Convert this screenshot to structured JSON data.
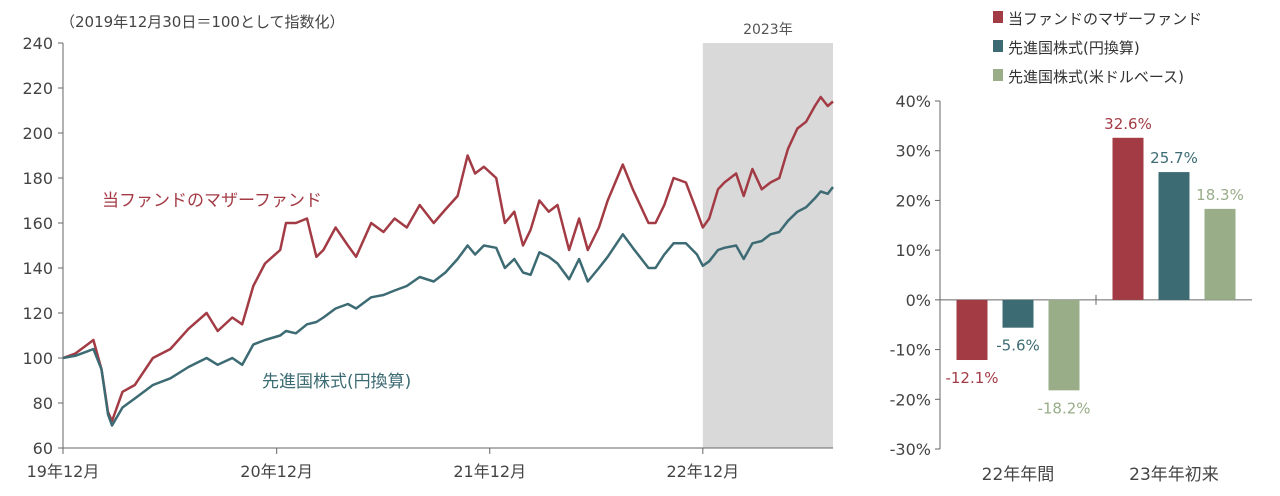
{
  "chart_data": [
    {
      "type": "line",
      "note": "（2019年12月30日＝100として指数化）",
      "ylim": [
        60,
        240
      ],
      "yticks": [
        60,
        80,
        100,
        120,
        140,
        160,
        180,
        200,
        220,
        240
      ],
      "x_tick_labels": [
        "19年12月",
        "20年12月",
        "21年12月",
        "22年12月"
      ],
      "shade_label": "2023年",
      "series": [
        {
          "name": "当ファンドのマザーファンド",
          "color": "#a33b45",
          "points": [
            [
              "2019-12-30",
              100
            ],
            [
              "2020-01-20",
              102
            ],
            [
              "2020-02-10",
              106
            ],
            [
              "2020-02-20",
              108
            ],
            [
              "2020-03-05",
              95
            ],
            [
              "2020-03-16",
              76
            ],
            [
              "2020-03-23",
              72
            ],
            [
              "2020-04-10",
              85
            ],
            [
              "2020-05-01",
              88
            ],
            [
              "2020-06-01",
              100
            ],
            [
              "2020-07-01",
              104
            ],
            [
              "2020-08-01",
              113
            ],
            [
              "2020-09-01",
              120
            ],
            [
              "2020-09-20",
              112
            ],
            [
              "2020-10-15",
              118
            ],
            [
              "2020-11-01",
              115
            ],
            [
              "2020-11-20",
              132
            ],
            [
              "2020-12-10",
              142
            ],
            [
              "2021-01-05",
              148
            ],
            [
              "2021-01-15",
              160
            ],
            [
              "2021-02-01",
              160
            ],
            [
              "2021-02-20",
              162
            ],
            [
              "2021-03-08",
              145
            ],
            [
              "2021-03-20",
              148
            ],
            [
              "2021-04-10",
              158
            ],
            [
              "2021-05-01",
              150
            ],
            [
              "2021-05-15",
              145
            ],
            [
              "2021-06-10",
              160
            ],
            [
              "2021-07-01",
              156
            ],
            [
              "2021-07-20",
              162
            ],
            [
              "2021-08-10",
              158
            ],
            [
              "2021-09-01",
              168
            ],
            [
              "2021-09-25",
              160
            ],
            [
              "2021-10-15",
              166
            ],
            [
              "2021-11-05",
              172
            ],
            [
              "2021-11-22",
              190
            ],
            [
              "2021-12-05",
              182
            ],
            [
              "2021-12-20",
              185
            ],
            [
              "2022-01-10",
              180
            ],
            [
              "2022-01-25",
              160
            ],
            [
              "2022-02-10",
              165
            ],
            [
              "2022-02-25",
              150
            ],
            [
              "2022-03-10",
              157
            ],
            [
              "2022-03-25",
              170
            ],
            [
              "2022-04-10",
              165
            ],
            [
              "2022-04-25",
              168
            ],
            [
              "2022-05-15",
              148
            ],
            [
              "2022-06-01",
              162
            ],
            [
              "2022-06-16",
              148
            ],
            [
              "2022-07-05",
              158
            ],
            [
              "2022-07-20",
              170
            ],
            [
              "2022-08-15",
              186
            ],
            [
              "2022-09-01",
              175
            ],
            [
              "2022-09-28",
              160
            ],
            [
              "2022-10-10",
              160
            ],
            [
              "2022-10-25",
              168
            ],
            [
              "2022-11-10",
              180
            ],
            [
              "2022-12-01",
              178
            ],
            [
              "2022-12-20",
              165
            ],
            [
              "2022-12-30",
              158
            ],
            [
              "2023-01-10",
              162
            ],
            [
              "2023-01-25",
              175
            ],
            [
              "2023-02-05",
              178
            ],
            [
              "2023-02-25",
              182
            ],
            [
              "2023-03-10",
              172
            ],
            [
              "2023-03-25",
              184
            ],
            [
              "2023-04-10",
              175
            ],
            [
              "2023-04-25",
              178
            ],
            [
              "2023-05-10",
              180
            ],
            [
              "2023-05-25",
              193
            ],
            [
              "2023-06-10",
              202
            ],
            [
              "2023-06-25",
              205
            ],
            [
              "2023-07-10",
              212
            ],
            [
              "2023-07-20",
              216
            ],
            [
              "2023-08-01",
              212
            ],
            [
              "2023-08-10",
              214
            ]
          ]
        },
        {
          "name": "先進国株式(円換算)",
          "color": "#3d6b73",
          "points": [
            [
              "2019-12-30",
              100
            ],
            [
              "2020-01-20",
              101
            ],
            [
              "2020-02-10",
              103
            ],
            [
              "2020-02-20",
              104
            ],
            [
              "2020-03-05",
              95
            ],
            [
              "2020-03-16",
              75
            ],
            [
              "2020-03-23",
              70
            ],
            [
              "2020-04-10",
              78
            ],
            [
              "2020-05-01",
              82
            ],
            [
              "2020-06-01",
              88
            ],
            [
              "2020-07-01",
              91
            ],
            [
              "2020-08-01",
              96
            ],
            [
              "2020-09-01",
              100
            ],
            [
              "2020-09-20",
              97
            ],
            [
              "2020-10-15",
              100
            ],
            [
              "2020-11-01",
              97
            ],
            [
              "2020-11-20",
              106
            ],
            [
              "2020-12-10",
              108
            ],
            [
              "2021-01-05",
              110
            ],
            [
              "2021-01-15",
              112
            ],
            [
              "2021-02-01",
              111
            ],
            [
              "2021-02-20",
              115
            ],
            [
              "2021-03-08",
              116
            ],
            [
              "2021-03-20",
              118
            ],
            [
              "2021-04-10",
              122
            ],
            [
              "2021-05-01",
              124
            ],
            [
              "2021-05-15",
              122
            ],
            [
              "2021-06-10",
              127
            ],
            [
              "2021-07-01",
              128
            ],
            [
              "2021-07-20",
              130
            ],
            [
              "2021-08-10",
              132
            ],
            [
              "2021-09-01",
              136
            ],
            [
              "2021-09-25",
              134
            ],
            [
              "2021-10-15",
              138
            ],
            [
              "2021-11-05",
              144
            ],
            [
              "2021-11-22",
              150
            ],
            [
              "2021-12-05",
              146
            ],
            [
              "2021-12-20",
              150
            ],
            [
              "2022-01-10",
              149
            ],
            [
              "2022-01-25",
              140
            ],
            [
              "2022-02-10",
              144
            ],
            [
              "2022-02-25",
              138
            ],
            [
              "2022-03-10",
              137
            ],
            [
              "2022-03-25",
              147
            ],
            [
              "2022-04-10",
              145
            ],
            [
              "2022-04-25",
              142
            ],
            [
              "2022-05-15",
              135
            ],
            [
              "2022-06-01",
              144
            ],
            [
              "2022-06-16",
              134
            ],
            [
              "2022-07-05",
              140
            ],
            [
              "2022-07-20",
              145
            ],
            [
              "2022-08-15",
              155
            ],
            [
              "2022-09-01",
              149
            ],
            [
              "2022-09-28",
              140
            ],
            [
              "2022-10-10",
              140
            ],
            [
              "2022-10-25",
              146
            ],
            [
              "2022-11-10",
              151
            ],
            [
              "2022-12-01",
              151
            ],
            [
              "2022-12-20",
              146
            ],
            [
              "2022-12-30",
              141
            ],
            [
              "2023-01-10",
              143
            ],
            [
              "2023-01-25",
              148
            ],
            [
              "2023-02-05",
              149
            ],
            [
              "2023-02-25",
              150
            ],
            [
              "2023-03-10",
              144
            ],
            [
              "2023-03-25",
              151
            ],
            [
              "2023-04-10",
              152
            ],
            [
              "2023-04-25",
              155
            ],
            [
              "2023-05-10",
              156
            ],
            [
              "2023-05-25",
              161
            ],
            [
              "2023-06-10",
              165
            ],
            [
              "2023-06-25",
              167
            ],
            [
              "2023-07-10",
              171
            ],
            [
              "2023-07-20",
              174
            ],
            [
              "2023-08-01",
              173
            ],
            [
              "2023-08-10",
              176
            ]
          ]
        }
      ]
    },
    {
      "type": "bar",
      "categories": [
        "22年年間",
        "23年年初来"
      ],
      "ylim": [
        -30,
        40
      ],
      "yticks": [
        -30,
        -20,
        -10,
        0,
        10,
        20,
        30,
        40
      ],
      "series": [
        {
          "name": "当ファンドのマザーファンド",
          "color": "#a33b45",
          "values": [
            -12.1,
            32.6
          ]
        },
        {
          "name": "先進国株式(円換算)",
          "color": "#3d6b73",
          "values": [
            -5.6,
            25.7
          ]
        },
        {
          "name": "先進国株式(米ドルベース)",
          "color": "#98ad88",
          "values": [
            -18.2,
            18.3
          ]
        }
      ]
    }
  ]
}
